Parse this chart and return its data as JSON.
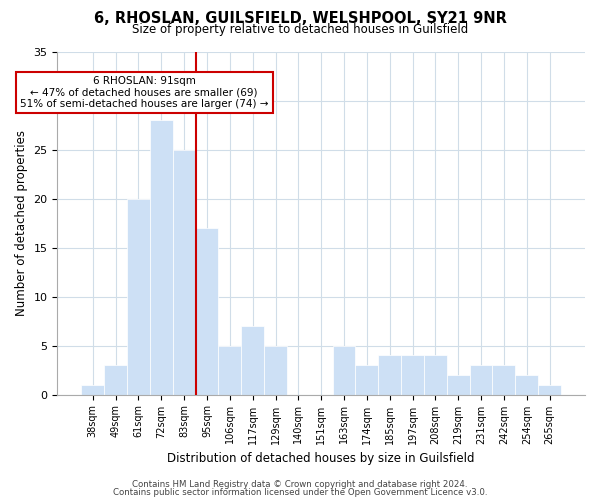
{
  "title": "6, RHOSLAN, GUILSFIELD, WELSHPOOL, SY21 9NR",
  "subtitle": "Size of property relative to detached houses in Guilsfield",
  "xlabel": "Distribution of detached houses by size in Guilsfield",
  "ylabel": "Number of detached properties",
  "categories": [
    "38sqm",
    "49sqm",
    "61sqm",
    "72sqm",
    "83sqm",
    "95sqm",
    "106sqm",
    "117sqm",
    "129sqm",
    "140sqm",
    "151sqm",
    "163sqm",
    "174sqm",
    "185sqm",
    "197sqm",
    "208sqm",
    "219sqm",
    "231sqm",
    "242sqm",
    "254sqm",
    "265sqm"
  ],
  "values": [
    1,
    3,
    20,
    28,
    25,
    17,
    5,
    7,
    5,
    0,
    0,
    5,
    3,
    4,
    4,
    4,
    2,
    3,
    3,
    2,
    1
  ],
  "bar_color": "#cde0f5",
  "bar_edge_color": "#ffffff",
  "highlight_line_color": "#cc0000",
  "highlight_line_index": 4.5,
  "annotation_title": "6 RHOSLAN: 91sqm",
  "annotation_line1": "← 47% of detached houses are smaller (69)",
  "annotation_line2": "51% of semi-detached houses are larger (74) →",
  "annotation_box_color": "#ffffff",
  "annotation_box_edge_color": "#cc0000",
  "ylim": [
    0,
    35
  ],
  "yticks": [
    0,
    5,
    10,
    15,
    20,
    25,
    30,
    35
  ],
  "footer1": "Contains HM Land Registry data © Crown copyright and database right 2024.",
  "footer2": "Contains public sector information licensed under the Open Government Licence v3.0.",
  "background_color": "#ffffff",
  "plot_background_color": "#ffffff",
  "grid_color": "#d0dde8"
}
